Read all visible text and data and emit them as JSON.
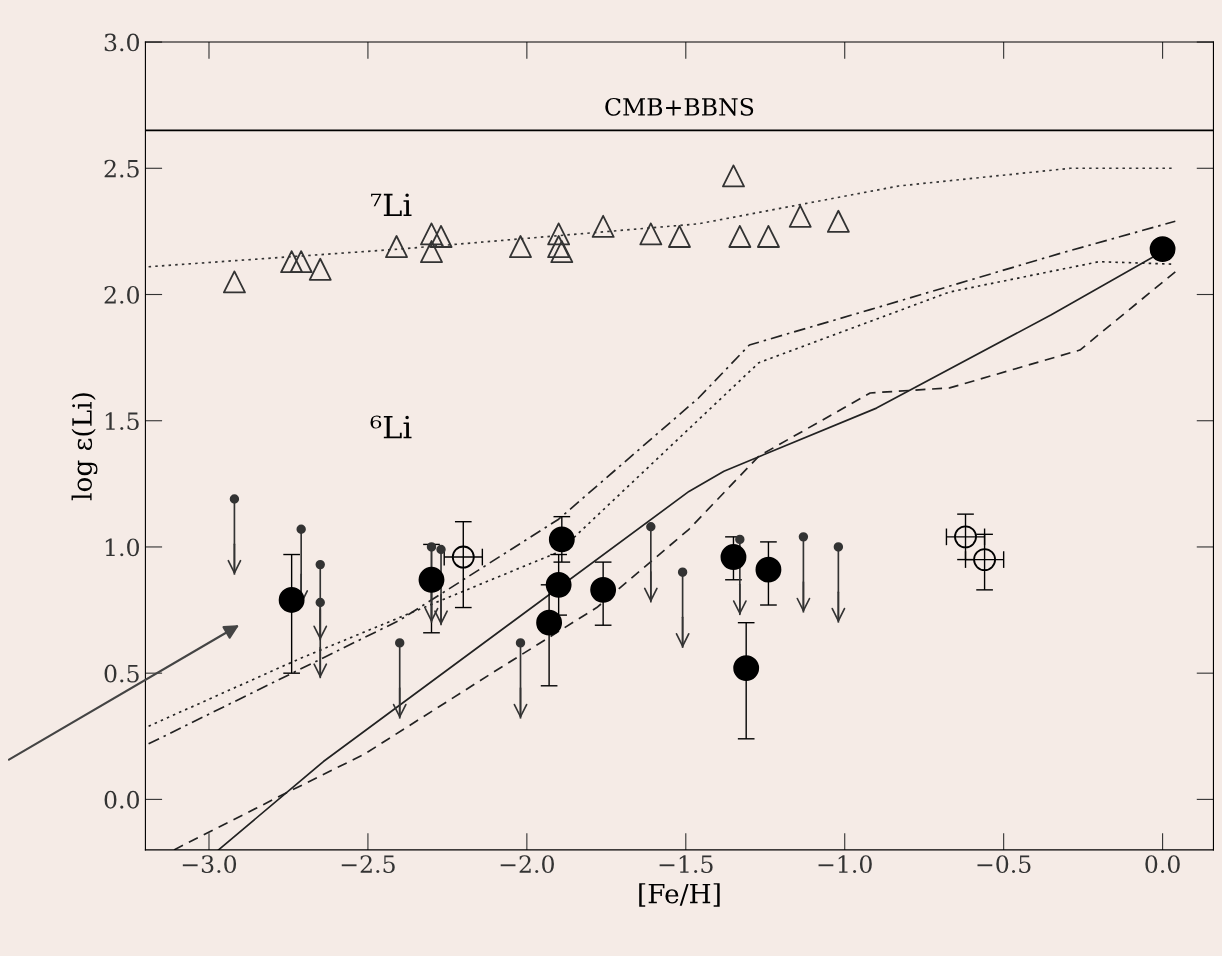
{
  "chart_data": {
    "type": "scatter",
    "xlabel": "[Fe/H]",
    "ylabel": "log ε(Li)",
    "xlim": [
      -3.2,
      0.16
    ],
    "ylim": [
      -0.2,
      3.0
    ],
    "xticks": [
      {
        "value": -3.0,
        "label": "−3.0"
      },
      {
        "value": -2.5,
        "label": "−2.5"
      },
      {
        "value": -2.0,
        "label": "−2.0"
      },
      {
        "value": -1.5,
        "label": "−1.5"
      },
      {
        "value": -1.0,
        "label": "−1.0"
      },
      {
        "value": -0.5,
        "label": "−0.5"
      },
      {
        "value": 0.0,
        "label": "0.0"
      }
    ],
    "yticks": [
      {
        "value": 0.0,
        "label": "0.0"
      },
      {
        "value": 0.5,
        "label": "0.5"
      },
      {
        "value": 1.0,
        "label": "1.0"
      },
      {
        "value": 1.5,
        "label": "1.5"
      },
      {
        "value": 2.0,
        "label": "2.0"
      },
      {
        "value": 2.5,
        "label": "2.5"
      },
      {
        "value": 3.0,
        "label": "3.0"
      }
    ],
    "grid": false,
    "legend": false,
    "ref_lines": [
      {
        "axis": "y",
        "value": 2.65,
        "label": "CMB+BBNS",
        "color": "#000000",
        "line_style": "solid"
      }
    ],
    "annotations": [
      "⁷Li",
      "⁶Li"
    ],
    "series": [
      {
        "marker": "triangle",
        "color": "#333333",
        "x": [
          -2.92,
          -2.74,
          -2.71,
          -2.65,
          -2.41,
          -2.3,
          -2.3,
          -2.27,
          -2.02,
          -1.9,
          -1.9,
          -1.89,
          -1.76,
          -1.61,
          -1.52,
          -1.35,
          -1.33,
          -1.24,
          -1.14,
          -1.02
        ],
        "values": [
          2.05,
          2.13,
          2.13,
          2.1,
          2.19,
          2.24,
          2.17,
          2.23,
          2.19,
          2.24,
          2.19,
          2.17,
          2.27,
          2.24,
          2.23,
          2.47,
          2.23,
          2.23,
          2.31,
          2.29
        ]
      },
      {
        "marker": "circle",
        "color": "#000000",
        "x": [
          0.0
        ],
        "values": [
          2.18
        ]
      },
      {
        "marker": "circle",
        "color": "#000000",
        "x": [
          -2.74,
          -2.3,
          -1.89,
          -1.9,
          -1.93,
          -1.76,
          -1.35,
          -1.24,
          -1.31
        ],
        "values": [
          0.79,
          0.87,
          1.03,
          0.85,
          0.7,
          0.83,
          0.96,
          0.91,
          0.52
        ],
        "errors": [
          [
            0.5,
            0.97
          ],
          [
            0.66,
            1.01
          ],
          [
            0.94,
            1.12
          ],
          [
            0.73,
            0.97
          ],
          [
            0.45,
            0.85
          ],
          [
            0.69,
            0.94
          ],
          [
            0.87,
            1.04
          ],
          [
            0.77,
            1.02
          ],
          [
            0.24,
            0.7
          ]
        ]
      },
      {
        "marker": "circle",
        "color": "#000000",
        "x": [
          -2.2,
          -0.62,
          -0.56
        ],
        "values": [
          0.96,
          1.04,
          0.95
        ],
        "errors": [
          [
            0.76,
            1.1
          ],
          [
            0.95,
            1.13
          ],
          [
            0.83,
            1.05
          ]
        ],
        "xerrors": [
          0.06,
          0.06,
          0.06
        ]
      },
      {
        "marker": "circle",
        "color": "#333333",
        "x": [
          -2.92,
          -2.71,
          -2.65,
          -2.65,
          -2.3,
          -2.27,
          -2.4,
          -2.02,
          -1.61,
          -1.51,
          -1.33,
          -1.13,
          -1.02
        ],
        "values": [
          1.19,
          1.07,
          0.93,
          0.78,
          1.0,
          0.99,
          0.62,
          0.62,
          1.08,
          0.9,
          1.03,
          1.04,
          1.0
        ],
        "errors": [
          [
            0.89,
            1.19
          ],
          [
            0.77,
            1.07
          ],
          [
            0.63,
            0.93
          ],
          [
            0.48,
            0.78
          ],
          [
            0.7,
            1.0
          ],
          [
            0.69,
            0.99
          ],
          [
            0.32,
            0.62
          ],
          [
            0.32,
            0.62
          ],
          [
            0.78,
            1.08
          ],
          [
            0.6,
            0.9
          ],
          [
            0.73,
            1.03
          ],
          [
            0.74,
            1.04
          ],
          [
            0.7,
            1.0
          ]
        ]
      },
      {
        "type": "line",
        "line_style": "dotted",
        "color": "#333333",
        "x": [
          -3.19,
          -2.4,
          -1.46,
          -0.83,
          -0.29,
          0.04
        ],
        "values": [
          2.11,
          2.18,
          2.28,
          2.43,
          2.5,
          2.5
        ]
      },
      {
        "type": "line",
        "line_style": "solid",
        "color": "#222222",
        "x": [
          -2.97,
          -2.64,
          -1.49,
          -1.38,
          -0.9,
          -0.35,
          0.0
        ],
        "values": [
          -0.2,
          0.15,
          1.22,
          1.3,
          1.55,
          1.92,
          2.17
        ]
      },
      {
        "type": "line",
        "line_style": "dashed",
        "color": "#222222",
        "x": [
          -3.11,
          -2.75,
          -2.51,
          -2.11,
          -1.78,
          -1.49,
          -1.27,
          -0.92,
          -0.67,
          -0.26,
          0.04
        ],
        "values": [
          -0.2,
          0.03,
          0.18,
          0.5,
          0.76,
          1.07,
          1.36,
          1.61,
          1.63,
          1.78,
          2.09
        ]
      },
      {
        "type": "line",
        "line_style": "dashdot",
        "color": "#222222",
        "x": [
          -3.19,
          -2.4,
          -1.9,
          -1.46,
          -1.3,
          -0.92,
          -0.33,
          0.04
        ],
        "values": [
          0.22,
          0.71,
          1.11,
          1.59,
          1.8,
          1.94,
          2.16,
          2.29
        ]
      },
      {
        "type": "line",
        "line_style": "dotted",
        "color": "#222222",
        "x": [
          -3.19,
          -2.71,
          -1.9,
          -1.27,
          -0.67,
          -0.2,
          0.04
        ],
        "values": [
          0.29,
          0.56,
          0.98,
          1.73,
          2.01,
          2.13,
          2.12
        ]
      }
    ]
  }
}
